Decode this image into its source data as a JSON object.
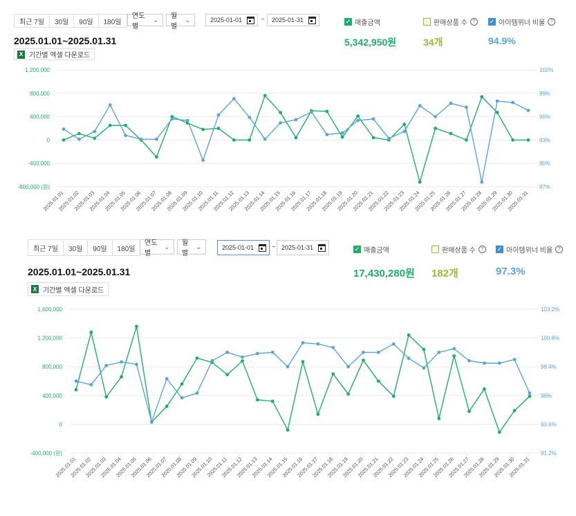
{
  "colors": {
    "green": "#1fae6a",
    "blue": "#5aa5d2",
    "olive": "#9bb83a",
    "grid": "#e9e9e9"
  },
  "panels": [
    {
      "quick": [
        "최근 7일",
        "30일",
        "90일",
        "180일"
      ],
      "unit_select": "연도별",
      "period_select": "월별",
      "date_from": "2025-01-01",
      "date_to": "2025-01-31",
      "tilde": "~",
      "chk_sales": "매출금액",
      "chk_count": "판매상품 수",
      "chk_ratio": "아이템위너 비율",
      "help": "?",
      "range": "2025.01.01~2025.01.31",
      "kpi_sales": "5,342,950원",
      "kpi_count": "34개",
      "kpi_ratio": "94.9%",
      "download": "기간별 엑셀 다운로드",
      "xl_icon": "X"
    },
    {
      "quick": [
        "최근 7일",
        "30일",
        "90일",
        "180일"
      ],
      "unit_select": "연도별",
      "period_select": "월별",
      "date_from": "2025-01-01",
      "date_to": "2025-01-31",
      "tilde": "~",
      "chk_sales": "매출금액",
      "chk_count": "판매상품 수",
      "chk_ratio": "아이템위너 비율",
      "help": "?",
      "range": "2025.01.01~2025.01.31",
      "kpi_sales": "17,430,280원",
      "kpi_count": "182개",
      "kpi_ratio": "97.3%",
      "download": "기간별 엑셀 다운로드",
      "xl_icon": "X"
    }
  ],
  "chart_data": [
    {
      "type": "line",
      "categories": [
        "2025.01.01",
        "2025.01.02",
        "2025.01.03",
        "2025.01.04",
        "2025.01.05",
        "2025.01.06",
        "2025.01.07",
        "2025.01.08",
        "2025.01.09",
        "2025.01.10",
        "2025.01.11",
        "2025.01.12",
        "2025.01.13",
        "2025.01.14",
        "2025.01.15",
        "2025.01.16",
        "2025.01.17",
        "2025.01.18",
        "2025.01.19",
        "2025.01.20",
        "2025.01.21",
        "2025.01.22",
        "2025.01.23",
        "2025.01.24",
        "2025.01.25",
        "2025.01.26",
        "2025.01.27",
        "2025.01.28",
        "2025.01.29",
        "2025.01.30",
        "2025.01.31"
      ],
      "y_left": {
        "ticks": [
          "1,200,000",
          "800,000",
          "400,000",
          "0",
          "-400,000",
          "-800,000 (원)"
        ],
        "min": -800000,
        "max": 1200000
      },
      "y_right": {
        "ticks": [
          "102%",
          "99%",
          "96%",
          "93%",
          "90%",
          "87%"
        ],
        "min": 87,
        "max": 102
      },
      "series": [
        {
          "name": "매출금액",
          "axis": "left",
          "color": "#1fae6a",
          "values": [
            0,
            110000,
            30000,
            250000,
            250000,
            0,
            -290000,
            400000,
            290000,
            180000,
            200000,
            0,
            0,
            760000,
            470000,
            40000,
            500000,
            490000,
            50000,
            410000,
            40000,
            0,
            270000,
            -720000,
            200000,
            110000,
            0,
            740000,
            470000,
            0,
            0
          ]
        },
        {
          "name": "아이템위너 비율",
          "axis": "right",
          "color": "#5aa5d2",
          "values": [
            94.4,
            93.1,
            94.1,
            97.5,
            93.6,
            93.1,
            93.1,
            95.7,
            95.5,
            90.4,
            96.2,
            98.3,
            95.9,
            93.1,
            95.2,
            95.6,
            96.6,
            93.7,
            93.9,
            95.5,
            95.7,
            93.2,
            94.1,
            97.4,
            96.0,
            97.7,
            97.2,
            87.6,
            98.0,
            97.8,
            96.8
          ]
        }
      ]
    },
    {
      "type": "line",
      "categories": [
        "2025.01.01",
        "2025.01.02",
        "2025.01.03",
        "2025.01.04",
        "2025.01.05",
        "2025.01.06",
        "2025.01.07",
        "2025.01.08",
        "2025.01.09",
        "2025.01.10",
        "2025.01.11",
        "2025.01.12",
        "2025.01.13",
        "2025.01.14",
        "2025.01.15",
        "2025.01.16",
        "2025.01.17",
        "2025.01.18",
        "2025.01.19",
        "2025.01.20",
        "2025.01.21",
        "2025.01.22",
        "2025.01.23",
        "2025.01.24",
        "2025.01.25",
        "2025.01.26",
        "2025.01.27",
        "2025.01.28",
        "2025.01.29",
        "2025.01.30",
        "2025.01.31"
      ],
      "y_left": {
        "ticks": [
          "1,600,000",
          "1,200,000",
          "800,000",
          "400,000",
          "0",
          "-400,000 (원)"
        ],
        "min": -400000,
        "max": 1600000
      },
      "y_right": {
        "ticks": [
          "103.2%",
          "100.8%",
          "98.4%",
          "96%",
          "93.6%",
          "91.2%"
        ],
        "min": 91.2,
        "max": 103.2
      },
      "series": [
        {
          "name": "매출금액",
          "axis": "left",
          "color": "#1fae6a",
          "values": [
            480000,
            1280000,
            380000,
            660000,
            1360000,
            30000,
            250000,
            560000,
            920000,
            860000,
            690000,
            880000,
            340000,
            320000,
            -80000,
            870000,
            140000,
            700000,
            420000,
            890000,
            600000,
            390000,
            1240000,
            1040000,
            80000,
            950000,
            180000,
            490000,
            -110000,
            190000,
            390000
          ]
        },
        {
          "name": "아이템위너 비율",
          "axis": "right",
          "color": "#5aa5d2",
          "values": [
            97.2,
            96.9,
            98.5,
            98.8,
            98.6,
            93.8,
            97.4,
            95.8,
            96.2,
            98.9,
            99.6,
            99.2,
            99.5,
            99.6,
            98.4,
            100.4,
            100.3,
            100.0,
            98.4,
            99.6,
            99.6,
            100.3,
            99.1,
            98.3,
            99.6,
            99.9,
            98.9,
            98.7,
            98.7,
            99.0,
            96.2
          ]
        }
      ]
    }
  ]
}
